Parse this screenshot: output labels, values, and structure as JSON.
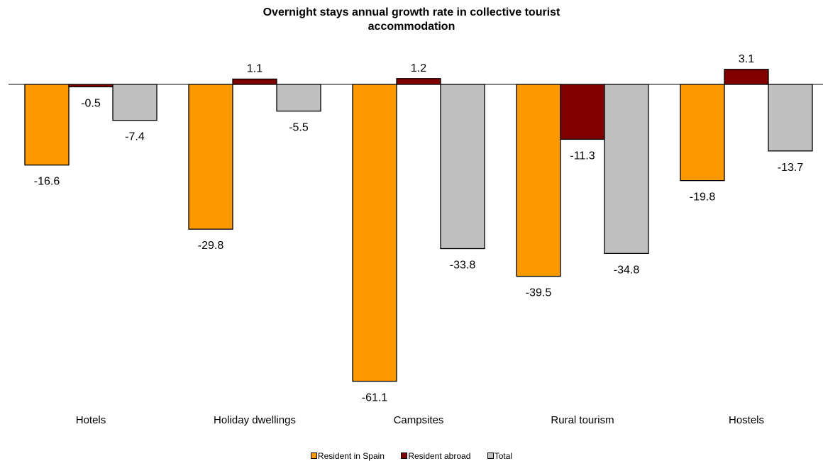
{
  "chart_data": {
    "type": "bar",
    "title_lines": [
      "Overnight stays annual growth rate in collective tourist",
      "accommodation"
    ],
    "categories": [
      "Hotels",
      "Holiday dwellings",
      "Campsites",
      "Rural tourism",
      "Hostels"
    ],
    "series": [
      {
        "name": "Resident in Spain",
        "color": "#ff9900",
        "values": [
          -16.6,
          -29.8,
          -61.1,
          -39.5,
          -19.8
        ]
      },
      {
        "name": "Resident abroad",
        "color": "#800000",
        "values": [
          -0.5,
          1.1,
          1.2,
          -11.3,
          3.1
        ]
      },
      {
        "name": "Total",
        "color": "#c0c0c0",
        "values": [
          -7.4,
          -5.5,
          -33.8,
          -34.8,
          -13.7
        ]
      }
    ],
    "ylim": [
      -65,
      6
    ],
    "grid": false,
    "legend_position": "bottom",
    "data_labels": true
  }
}
